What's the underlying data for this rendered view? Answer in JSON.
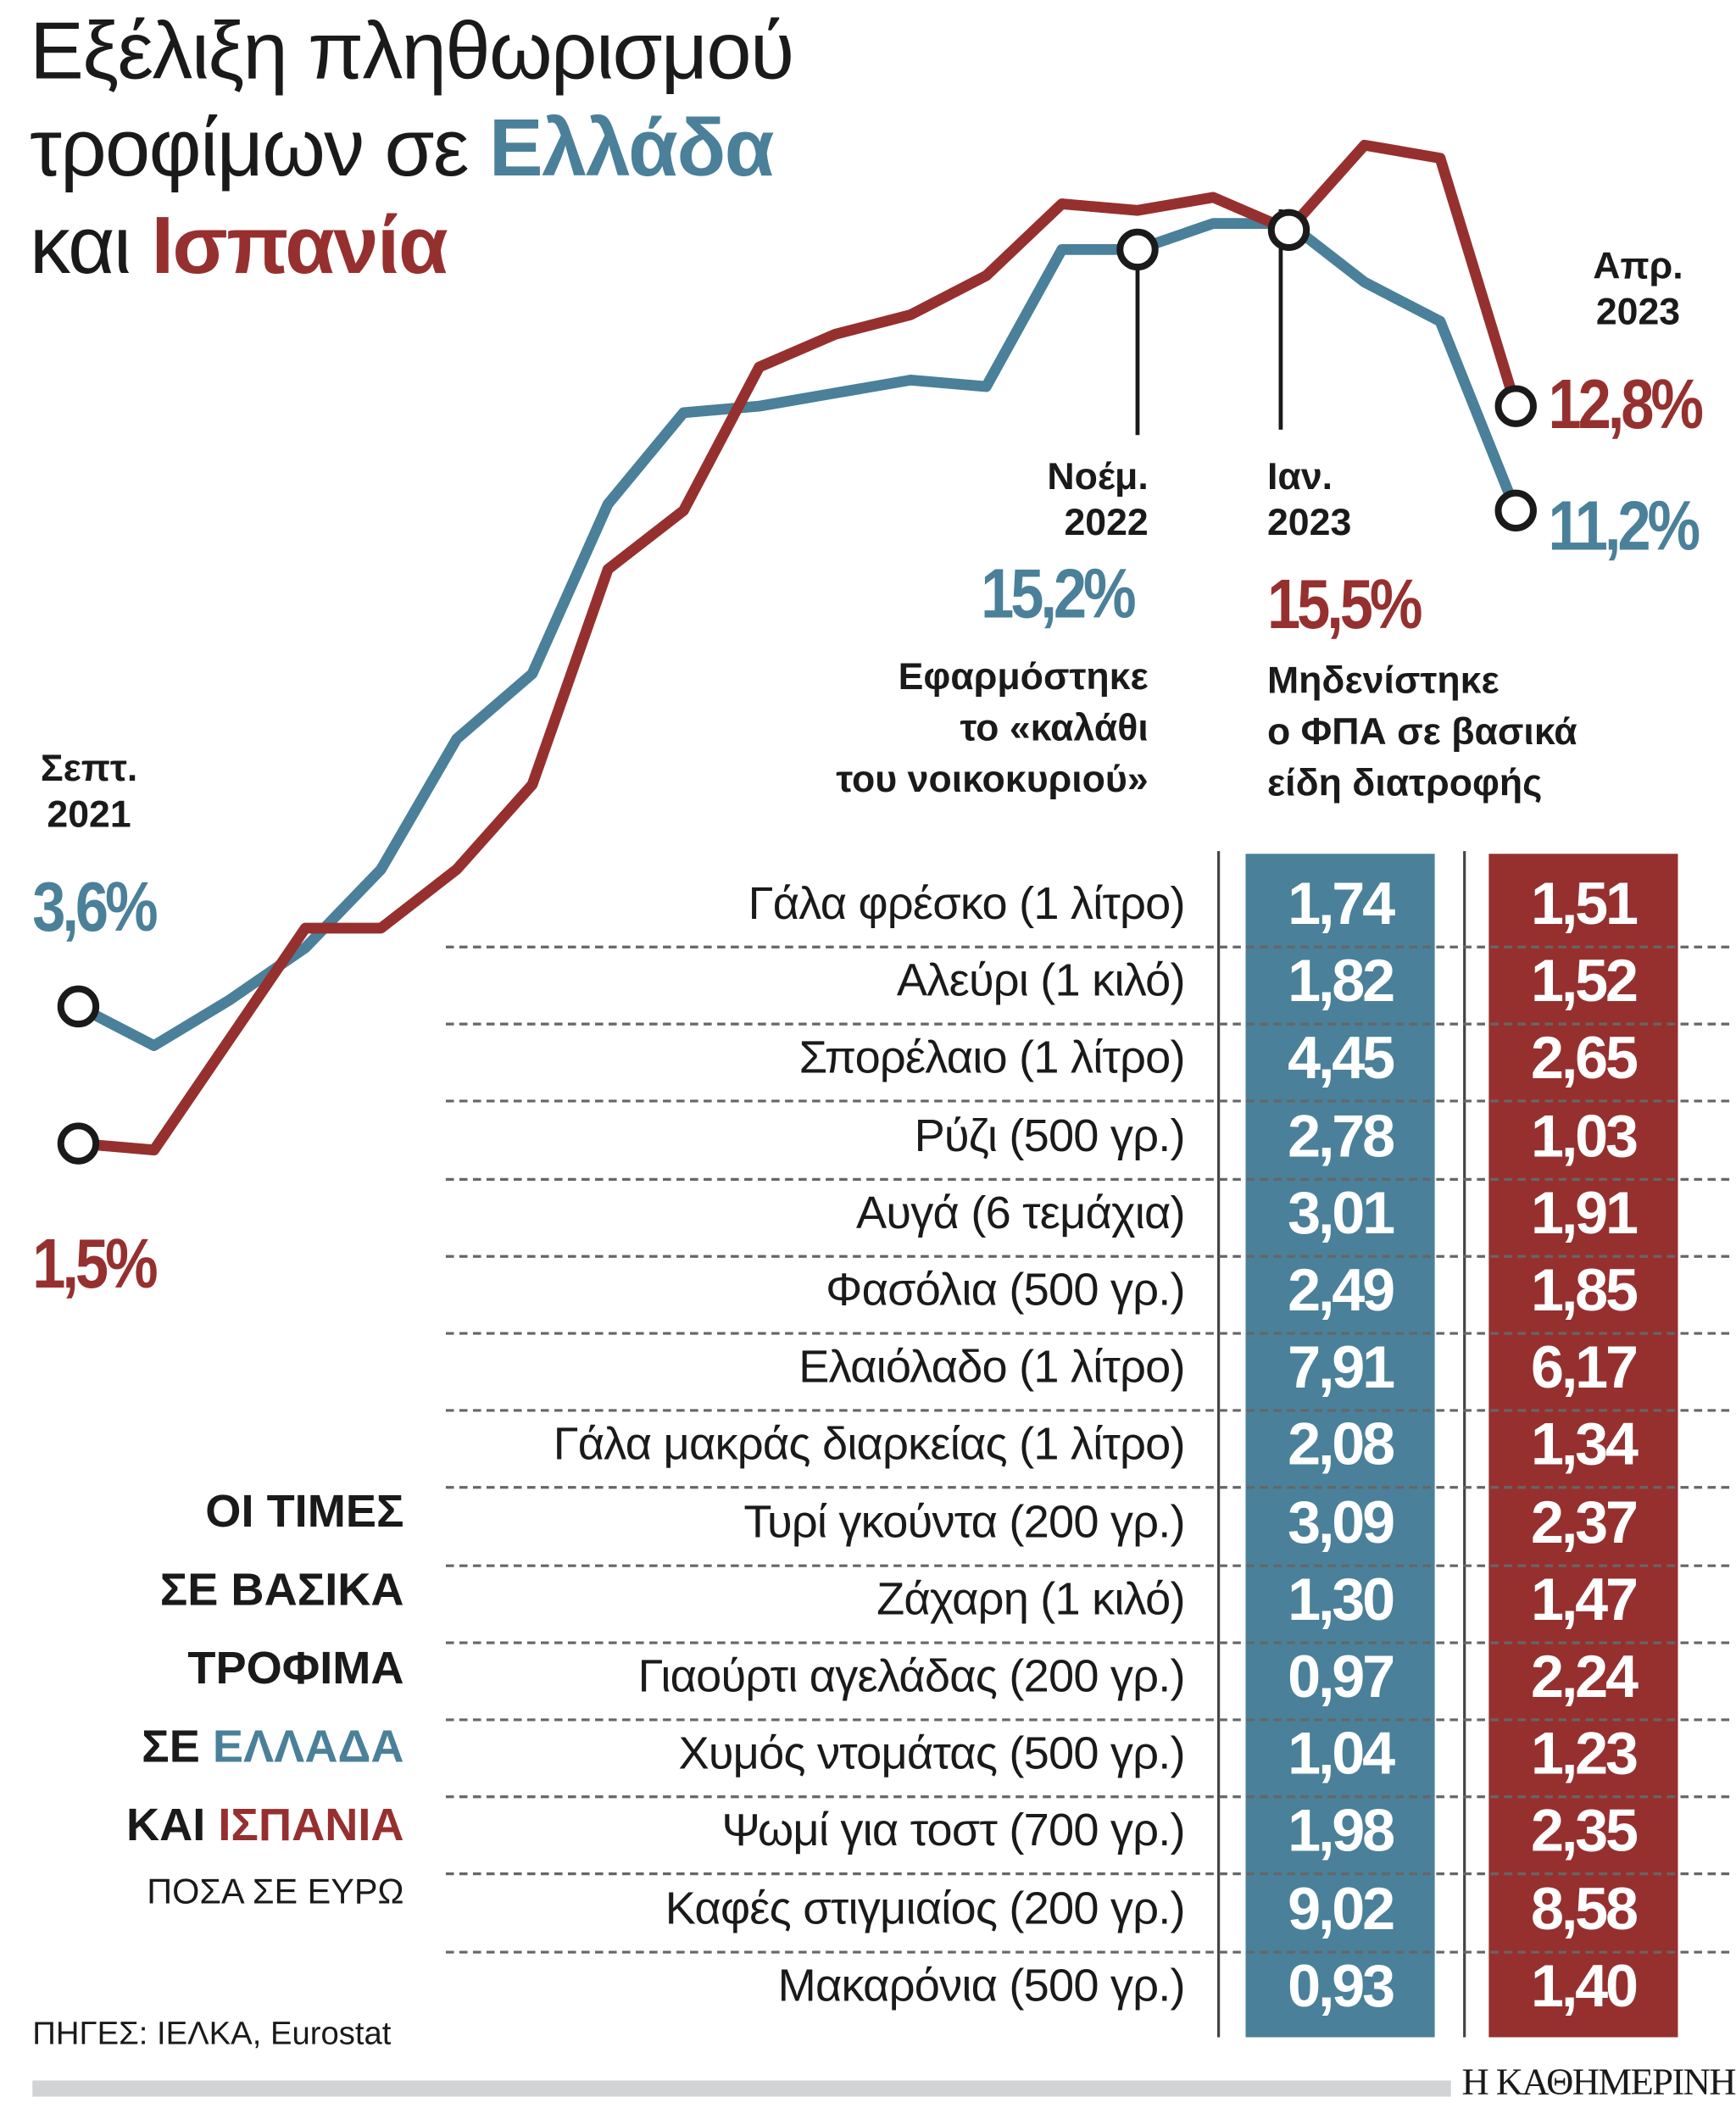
{
  "title": {
    "line1": "Εξέλιξη πληθωρισμού",
    "line2_prefix": "τροφίμων σε ",
    "line2_greece": "Ελλάδα",
    "line3_prefix": "και ",
    "line3_spain": "Ισπανία"
  },
  "colors": {
    "greece": "#4a8099",
    "spain": "#96302f"
  },
  "chart_data": {
    "type": "line",
    "x_start": "Σεπτ. 2021",
    "x_end": "Απρ. 2023",
    "series": [
      {
        "name": "Ελλάδα",
        "values": [
          3.6,
          3.0,
          3.7,
          4.5,
          5.7,
          7.7,
          8.7,
          11.3,
          12.7,
          12.8,
          13.0,
          13.2,
          13.1,
          15.2,
          15.2,
          15.6,
          15.6,
          14.7,
          14.1,
          11.2
        ]
      },
      {
        "name": "Ισπανία",
        "values": [
          1.5,
          1.4,
          3.1,
          4.8,
          4.8,
          5.7,
          7.0,
          10.3,
          11.2,
          13.4,
          13.9,
          14.2,
          14.8,
          15.9,
          15.8,
          16.0,
          15.5,
          16.8,
          16.6,
          12.8
        ]
      }
    ],
    "annotations": {
      "start": {
        "date_line1": "Σεπτ.",
        "date_line2": "2021",
        "greece": "3,6%",
        "spain": "1,5%"
      },
      "nov": {
        "date_line1": "Νοέμ.",
        "date_line2": "2022",
        "value": "15,2%",
        "note1": "Εφαρμόστηκε",
        "note2": "το «καλάθι",
        "note3": "του νοικοκυριού»"
      },
      "jan": {
        "date_line1": "Ιαν.",
        "date_line2": "2023",
        "value": "15,5%",
        "note1": "Μηδενίστηκε",
        "note2": "ο ΦΠΑ σε βασικά",
        "note3": "είδη διατροφής"
      },
      "end": {
        "date_line1": "Απρ.",
        "date_line2": "2023",
        "spain": "12,8%",
        "greece": "11,2%"
      }
    }
  },
  "table": {
    "heading": {
      "l1": "ΟΙ ΤΙΜΕΣ",
      "l2": "ΣΕ ΒΑΣΙΚΑ",
      "l3": "ΤΡΟΦΙΜΑ",
      "l4_prefix": "ΣΕ ",
      "l4_country": "ΕΛΛΑΔΑ",
      "l5_prefix": "ΚΑΙ ",
      "l5_country": "ΙΣΠΑΝΙΑ",
      "unit": "ΠΟΣΑ ΣΕ ΕΥΡΩ"
    },
    "rows": [
      {
        "item": "Γάλα φρέσκο (1 λίτρο)",
        "greece": "1,74",
        "spain": "1,51"
      },
      {
        "item": "Αλεύρι (1 κιλό)",
        "greece": "1,82",
        "spain": "1,52"
      },
      {
        "item": "Σπορέλαιο (1 λίτρο)",
        "greece": "4,45",
        "spain": "2,65"
      },
      {
        "item": "Ρύζι (500 γρ.)",
        "greece": "2,78",
        "spain": "1,03"
      },
      {
        "item": "Αυγά (6 τεμάχια)",
        "greece": "3,01",
        "spain": "1,91"
      },
      {
        "item": "Φασόλια (500 γρ.)",
        "greece": "2,49",
        "spain": "1,85"
      },
      {
        "item": "Ελαιόλαδο (1 λίτρο)",
        "greece": "7,91",
        "spain": "6,17"
      },
      {
        "item": "Γάλα μακράς διαρκείας (1 λίτρο)",
        "greece": "2,08",
        "spain": "1,34"
      },
      {
        "item": "Τυρί γκούντα (200 γρ.)",
        "greece": "3,09",
        "spain": "2,37"
      },
      {
        "item": "Ζάχαρη (1 κιλό)",
        "greece": "1,30",
        "spain": "1,47"
      },
      {
        "item": "Γιαούρτι αγελάδας (200 γρ.)",
        "greece": "0,97",
        "spain": "2,24"
      },
      {
        "item": "Χυμός ντομάτας (500 γρ.)",
        "greece": "1,04",
        "spain": "1,23"
      },
      {
        "item": "Ψωμί για τοστ (700 γρ.)",
        "greece": "1,98",
        "spain": "2,35"
      },
      {
        "item": "Καφές στιγμιαίος (200 γρ.)",
        "greece": "9,02",
        "spain": "8,58"
      },
      {
        "item": "Μακαρόνια (500 γρ.)",
        "greece": "0,93",
        "spain": "1,40"
      }
    ]
  },
  "footer": {
    "sources": "ΠΗΓΕΣ: ΙΕΛΚΑ, Eurostat",
    "brand": "Η ΚΑΘΗΜΕΡΙΝΗ"
  }
}
